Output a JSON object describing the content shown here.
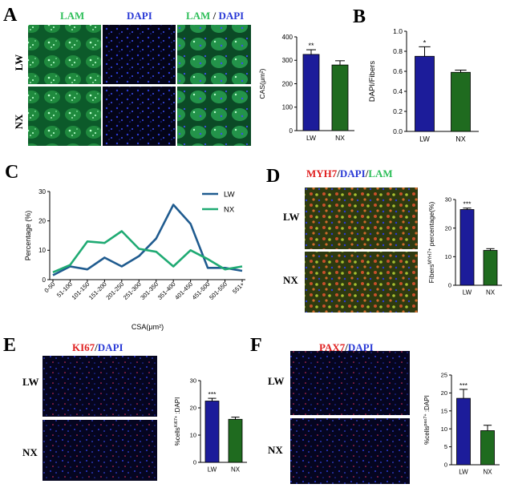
{
  "panels": {
    "A": {
      "letter": "A",
      "channel_titles": [
        {
          "text": "LAM",
          "color": "#2fbf5a"
        },
        {
          "text": "DAPI",
          "color": "#2a3ad6"
        },
        {
          "text": "LAM",
          "color": "#2fbf5a"
        },
        {
          "text": "/",
          "color": "#222222"
        },
        {
          "text": "DAPI",
          "color": "#2a3ad6"
        }
      ],
      "row_labels": [
        "LW",
        "NX"
      ]
    },
    "B": {
      "letter": "B"
    },
    "C": {
      "letter": "C"
    },
    "D": {
      "letter": "D",
      "title_parts": [
        {
          "text": "MYH7",
          "color": "#e02020"
        },
        {
          "text": "/",
          "color": "#222222"
        },
        {
          "text": "DAPI",
          "color": "#2a3ad6"
        },
        {
          "text": "/",
          "color": "#222222"
        },
        {
          "text": "LAM",
          "color": "#2fbf5a"
        }
      ],
      "row_labels": [
        "LW",
        "NX"
      ]
    },
    "E": {
      "letter": "E",
      "title_parts": [
        {
          "text": "KI67",
          "color": "#e02020"
        },
        {
          "text": "/",
          "color": "#222222"
        },
        {
          "text": "DAPI",
          "color": "#2a3ad6"
        }
      ],
      "row_labels": [
        "LW",
        "NX"
      ]
    },
    "F": {
      "letter": "F",
      "title_parts": [
        {
          "text": "PAX7",
          "color": "#e02020"
        },
        {
          "text": "/",
          "color": "#222222"
        },
        {
          "text": "DAPI",
          "color": "#2a3ad6"
        }
      ],
      "row_labels": [
        "LW",
        "NX"
      ]
    }
  },
  "colors": {
    "LW": "#1c1c9a",
    "NX": "#1f6b1f",
    "line_LW": "#1f5b8f",
    "line_NX": "#1faa73"
  },
  "chart_data": [
    {
      "id": "A",
      "type": "bar",
      "categories": [
        "LW",
        "NX"
      ],
      "values": [
        325,
        280
      ],
      "errors": [
        20,
        18
      ],
      "significance": [
        "**",
        ""
      ],
      "ylabel": "CAS(μm²)",
      "ylim": [
        0,
        400
      ],
      "yticks": [
        0,
        100,
        200,
        300,
        400
      ]
    },
    {
      "id": "B",
      "type": "bar",
      "categories": [
        "LW",
        "NX"
      ],
      "values": [
        0.75,
        0.59
      ],
      "errors": [
        0.095,
        0.022
      ],
      "significance": [
        "*",
        ""
      ],
      "ylabel": "DAPI/Fibers",
      "ylim": [
        0,
        1.0
      ],
      "yticks": [
        0.0,
        0.2,
        0.4,
        0.6,
        0.8,
        1.0
      ]
    },
    {
      "id": "C",
      "type": "line",
      "categories": [
        "0-50",
        "51-100",
        "101-150",
        "151-200",
        "201-250",
        "251-300",
        "301-350",
        "351-400",
        "401-450",
        "451-500",
        "501-550",
        "551+"
      ],
      "series": [
        {
          "name": "LW",
          "values": [
            1.5,
            4.5,
            3.5,
            7.5,
            4.5,
            8.0,
            14.0,
            25.5,
            19.0,
            4.0,
            4.0,
            3.0
          ]
        },
        {
          "name": "NX",
          "values": [
            2.5,
            5.0,
            13.0,
            12.5,
            16.5,
            10.5,
            9.5,
            4.5,
            10.0,
            7.0,
            3.5,
            4.5
          ]
        }
      ],
      "xlabel": "CSA(μm²)",
      "ylabel": "Percentage (%)",
      "ylim": [
        0,
        30
      ],
      "yticks": [
        0,
        10,
        20,
        30
      ]
    },
    {
      "id": "D",
      "type": "bar",
      "categories": [
        "LW",
        "NX"
      ],
      "values": [
        26.5,
        12.2
      ],
      "errors": [
        0.5,
        0.6
      ],
      "significance": [
        "***",
        ""
      ],
      "ylabel": "Fibers^MYH7+ percentage(%)",
      "ylim": [
        0,
        30
      ],
      "yticks": [
        0,
        10,
        20,
        30
      ]
    },
    {
      "id": "E",
      "type": "bar",
      "categories": [
        "LW",
        "NX"
      ],
      "values": [
        22.5,
        15.8
      ],
      "errors": [
        1.0,
        0.8
      ],
      "significance": [
        "***",
        ""
      ],
      "ylabel": "%cells^Ki67+ :DAPI",
      "ylim": [
        0,
        30
      ],
      "yticks": [
        0,
        10,
        20,
        30
      ]
    },
    {
      "id": "F",
      "type": "bar",
      "categories": [
        "LW",
        "NX"
      ],
      "values": [
        18.5,
        9.5
      ],
      "errors": [
        2.5,
        1.5
      ],
      "significance": [
        "***",
        ""
      ],
      "ylabel": "%cells^pax7+ :DAPI",
      "ylim": [
        0,
        25
      ],
      "yticks": [
        0,
        5,
        10,
        15,
        20,
        25
      ]
    }
  ]
}
